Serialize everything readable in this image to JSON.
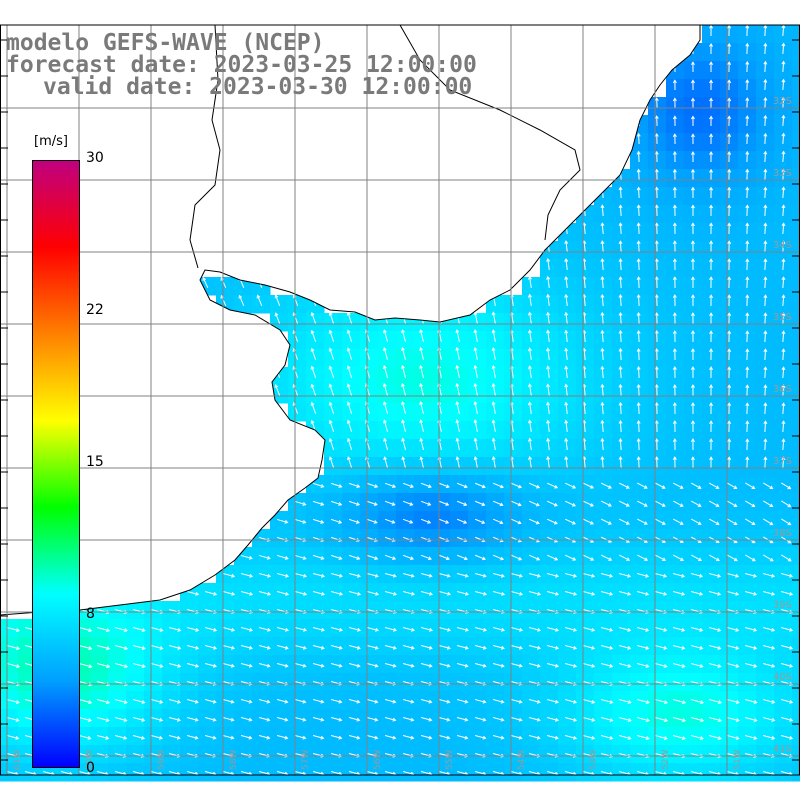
{
  "title": {
    "line1": "modelo GEFS-WAVE (NCEP)",
    "line2": "forecast date: 2023-03-25 12:00:00",
    "line3": "valid date: 2023-03-30 12:00:00"
  },
  "colorbar": {
    "units": "[m/s]",
    "min": 0,
    "max": 30,
    "ticks": [
      "30",
      "22",
      "15",
      "8",
      "0"
    ],
    "tick_values": [
      30,
      22,
      15,
      8,
      0
    ],
    "colors": [
      "#0000ff",
      "#00a0ff",
      "#00ffff",
      "#00ff00",
      "#ffff00",
      "#ff8000",
      "#ff0000",
      "#c00080"
    ]
  },
  "map": {
    "field": "wind speed (m/s) with direction arrows",
    "lat_labels": [
      "32S",
      "33S",
      "34S",
      "35S",
      "36S",
      "37S",
      "38S",
      "39S",
      "40S",
      "41S"
    ],
    "lon_labels": [
      "61W",
      "60W",
      "59W",
      "58W",
      "57W",
      "56W",
      "55W",
      "54W",
      "53W",
      "52W",
      "51W",
      "50W"
    ],
    "land_color": "#ffffff",
    "coastline_color": "#000000",
    "grid_color": "#808080"
  }
}
